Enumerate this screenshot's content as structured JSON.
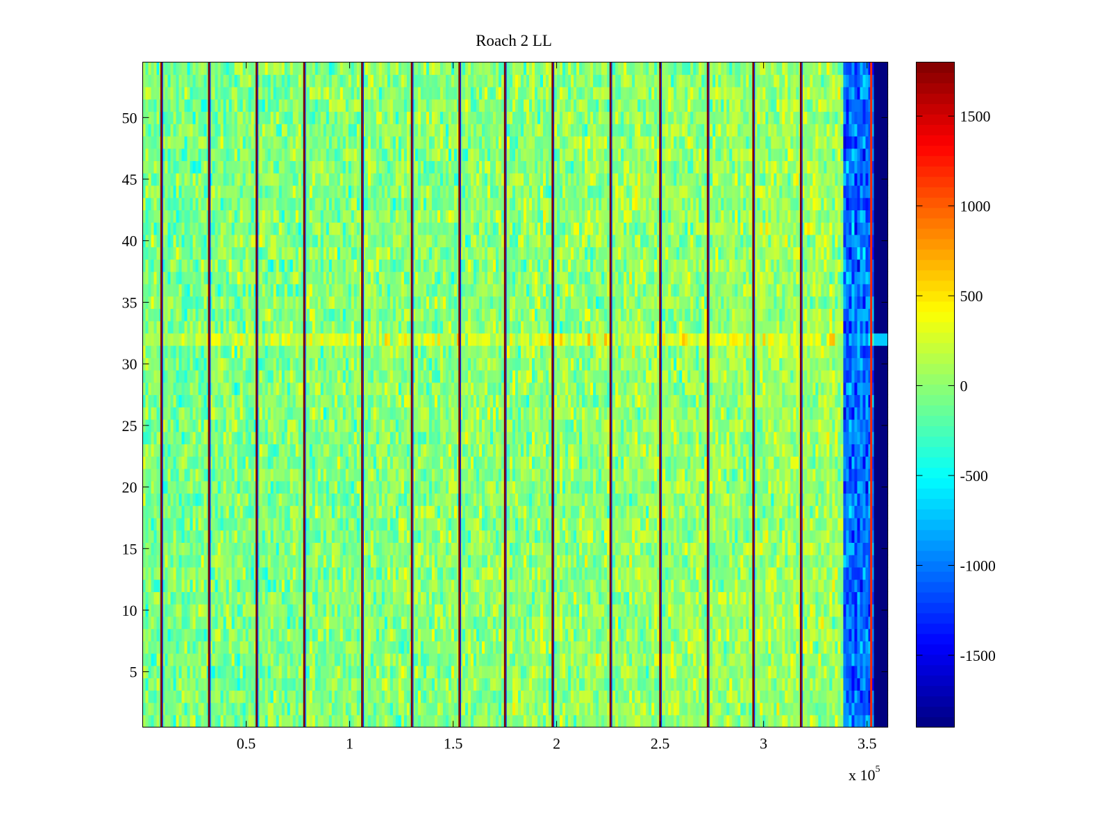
{
  "chart_data": {
    "type": "heatmap",
    "title": "Roach 2 LL",
    "xlabel": "",
    "ylabel": "",
    "x_multiplier_label": "x 10",
    "x_multiplier_exponent": "5",
    "xlim": [
      0,
      3.6
    ],
    "ylim": [
      0.5,
      54.5
    ],
    "x_ticks": [
      0.5,
      1,
      1.5,
      2,
      2.5,
      3,
      3.5
    ],
    "x_tick_labels": [
      "0.5",
      "1",
      "1.5",
      "2",
      "2.5",
      "3",
      "3.5"
    ],
    "y_ticks": [
      5,
      10,
      15,
      20,
      25,
      30,
      35,
      40,
      45,
      50
    ],
    "y_tick_labels": [
      "5",
      "10",
      "15",
      "20",
      "25",
      "30",
      "35",
      "40",
      "45",
      "50"
    ],
    "rows": 54,
    "colorbar": {
      "colormap": "jet",
      "clim": [
        -1900,
        1800
      ],
      "ticks": [
        -1500,
        -1000,
        -500,
        0,
        500,
        1000,
        1500
      ],
      "tick_labels": [
        "-1500",
        "-1000",
        "-500",
        "0",
        "500",
        "1000",
        "1500"
      ]
    },
    "background_level_mean": 0,
    "background_level_spread": 250,
    "impulse_lines_x": [
      0.09,
      0.32,
      0.55,
      0.78,
      1.06,
      1.3,
      1.53,
      1.75,
      1.98,
      2.26,
      2.5,
      2.73,
      2.95,
      3.18
    ],
    "impulse_level": 1800,
    "band_edge_x": 3.39,
    "band_edge_level": -1050,
    "edge_line_x": 3.52,
    "edge_line_level": 1200,
    "cutoff_x": 3.53,
    "cutoff_level": -1900,
    "bright_row": 32,
    "bright_row_offset": 250
  }
}
